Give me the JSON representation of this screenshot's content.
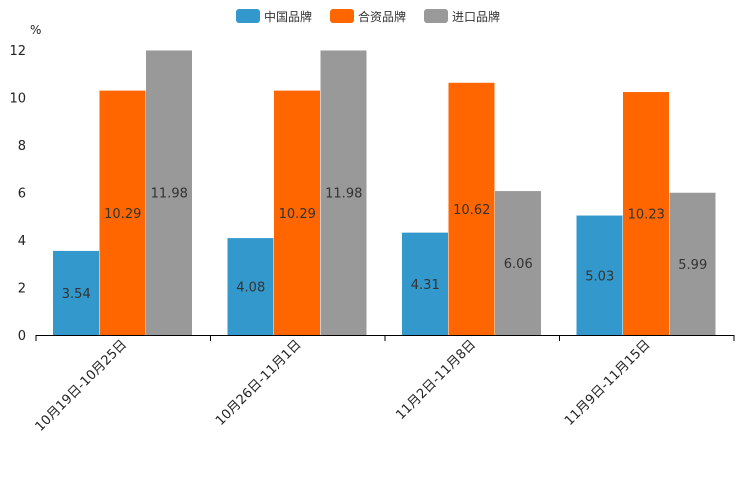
{
  "chart_data": {
    "type": "bar",
    "unit": "%",
    "categories": [
      "10月19日-10月25日",
      "10月26日-11月1日",
      "11月2日-11月8日",
      "11月9日-11月15日"
    ],
    "series": [
      {
        "name": "中国品牌",
        "color": "#3399CC",
        "values": [
          3.54,
          4.08,
          4.31,
          5.03
        ]
      },
      {
        "name": "合资品牌",
        "color": "#FF6600",
        "values": [
          10.29,
          10.29,
          10.62,
          10.23
        ]
      },
      {
        "name": "进口品牌",
        "color": "#999999",
        "values": [
          11.98,
          11.98,
          6.06,
          5.99
        ]
      }
    ],
    "yticks": [
      0,
      2,
      4,
      6,
      8,
      10,
      12
    ],
    "ylim": [
      0,
      12
    ],
    "legend_position": "top-center"
  }
}
